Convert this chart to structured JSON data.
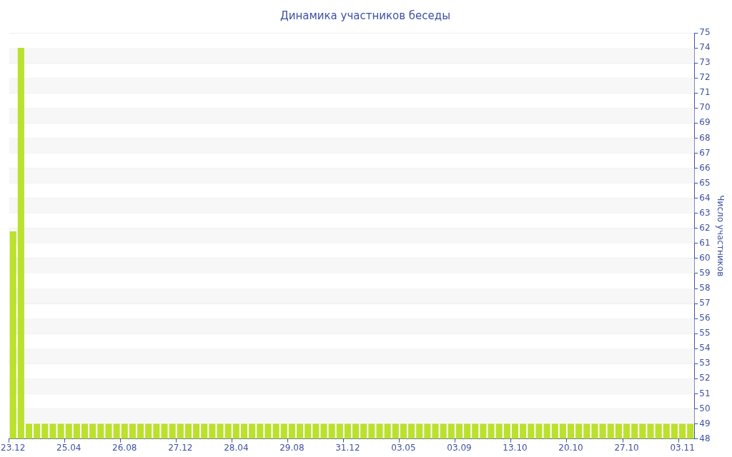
{
  "chart_data": {
    "type": "bar",
    "title": "Динамика участников беседы",
    "ylabel": "Число участников",
    "categories": [
      "23.12",
      null,
      null,
      null,
      null,
      null,
      null,
      "25.04",
      null,
      null,
      null,
      null,
      null,
      null,
      "26.08",
      null,
      null,
      null,
      null,
      null,
      null,
      "27.12",
      null,
      null,
      null,
      null,
      null,
      null,
      "28.04",
      null,
      null,
      null,
      null,
      null,
      null,
      "29.08",
      null,
      null,
      null,
      null,
      null,
      null,
      "31.12",
      null,
      null,
      null,
      null,
      null,
      null,
      "03.05",
      null,
      null,
      null,
      null,
      null,
      null,
      "03.09",
      null,
      null,
      null,
      null,
      null,
      null,
      "13.10",
      null,
      null,
      null,
      null,
      null,
      null,
      "20.10",
      null,
      null,
      null,
      null,
      null,
      null,
      "27.10",
      null,
      null,
      null,
      null,
      null,
      null,
      "03.11",
      null
    ],
    "values": [
      61.8,
      74,
      49,
      49,
      49,
      49,
      49,
      49,
      49,
      49,
      49,
      49,
      49,
      49,
      49,
      49,
      49,
      49,
      49,
      49,
      49,
      49,
      49,
      49,
      49,
      49,
      49,
      49,
      49,
      49,
      49,
      49,
      49,
      49,
      49,
      49,
      49,
      49,
      49,
      49,
      49,
      49,
      49,
      49,
      49,
      49,
      49,
      49,
      49,
      49,
      49,
      49,
      49,
      49,
      49,
      49,
      49,
      49,
      49,
      49,
      49,
      49,
      49,
      49,
      49,
      49,
      49,
      49,
      49,
      49,
      49,
      49,
      49,
      49,
      49,
      49,
      49,
      49,
      49,
      49,
      49,
      49,
      49,
      49,
      49,
      49
    ],
    "color": "#bbe02e",
    "ylim": [
      48,
      75
    ],
    "yticks": [
      48,
      49,
      50,
      51,
      52,
      53,
      54,
      55,
      56,
      57,
      58,
      59,
      60,
      61,
      62,
      63,
      64,
      65,
      66,
      67,
      68,
      69,
      70,
      71,
      72,
      73,
      74,
      75
    ],
    "grid": true,
    "legend": false
  }
}
